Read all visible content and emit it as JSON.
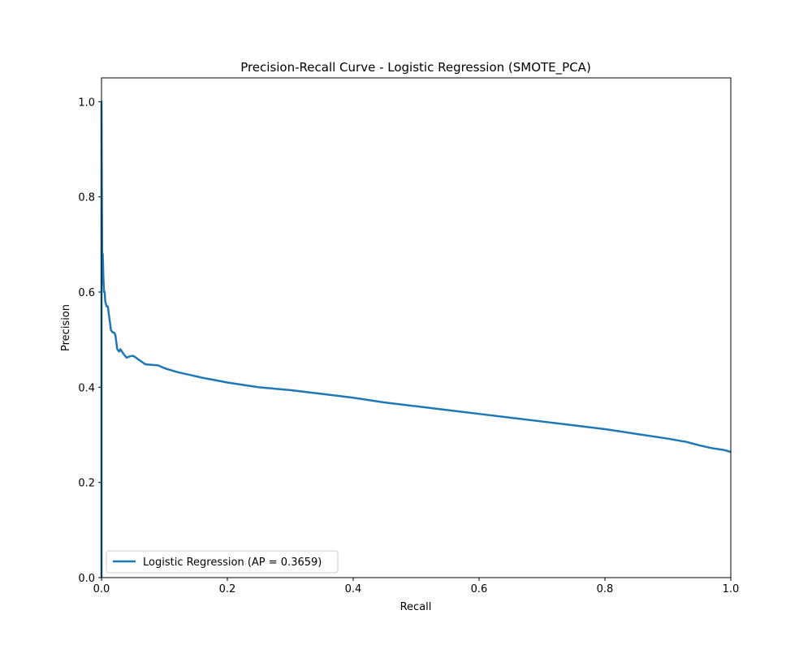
{
  "chart_data": {
    "type": "line",
    "title": "Precision-Recall Curve - Logistic Regression (SMOTE_PCA)",
    "xlabel": "Recall",
    "ylabel": "Precision",
    "xlim": [
      0.0,
      1.0
    ],
    "ylim": [
      0.0,
      1.05
    ],
    "xticks": [
      0.0,
      0.2,
      0.4,
      0.6,
      0.8,
      1.0
    ],
    "xtick_labels": [
      "0.0",
      "0.2",
      "0.4",
      "0.6",
      "0.8",
      "1.0"
    ],
    "yticks": [
      0.0,
      0.2,
      0.4,
      0.6,
      0.8,
      1.0
    ],
    "ytick_labels": [
      "0.0",
      "0.2",
      "0.4",
      "0.6",
      "0.8",
      "1.0"
    ],
    "grid": false,
    "legend_position": "lower-left",
    "series": [
      {
        "name": "Logistic Regression (AP = 0.3659)",
        "color": "#1f77b4",
        "x": [
          0.0,
          0.0,
          0.0,
          0.0005,
          0.001,
          0.0015,
          0.002,
          0.003,
          0.004,
          0.005,
          0.006,
          0.008,
          0.01,
          0.012,
          0.015,
          0.018,
          0.02,
          0.022,
          0.025,
          0.028,
          0.03,
          0.035,
          0.04,
          0.045,
          0.05,
          0.055,
          0.06,
          0.07,
          0.08,
          0.09,
          0.1,
          0.12,
          0.14,
          0.16,
          0.18,
          0.2,
          0.25,
          0.3,
          0.35,
          0.4,
          0.45,
          0.5,
          0.55,
          0.6,
          0.65,
          0.7,
          0.75,
          0.8,
          0.85,
          0.9,
          0.93,
          0.95,
          0.97,
          0.99,
          1.0
        ],
        "y": [
          0.0,
          0.55,
          1.0,
          0.83,
          0.7,
          0.62,
          0.68,
          0.63,
          0.6,
          0.6,
          0.58,
          0.57,
          0.57,
          0.55,
          0.52,
          0.515,
          0.515,
          0.51,
          0.48,
          0.475,
          0.48,
          0.47,
          0.462,
          0.465,
          0.466,
          0.462,
          0.457,
          0.448,
          0.447,
          0.446,
          0.44,
          0.432,
          0.426,
          0.42,
          0.415,
          0.41,
          0.4,
          0.394,
          0.386,
          0.378,
          0.368,
          0.36,
          0.352,
          0.344,
          0.336,
          0.328,
          0.32,
          0.312,
          0.302,
          0.292,
          0.285,
          0.278,
          0.272,
          0.268,
          0.264
        ]
      }
    ]
  }
}
